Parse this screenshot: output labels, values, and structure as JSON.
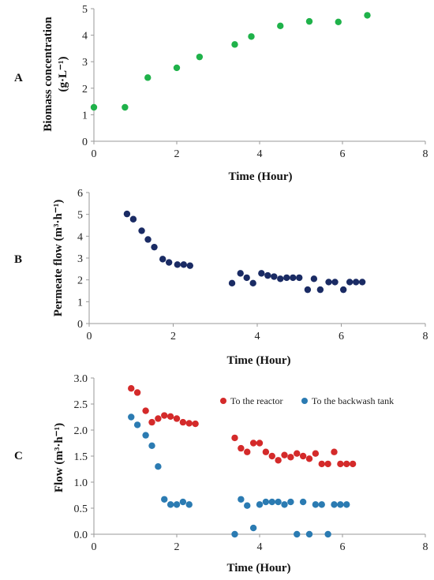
{
  "chart_data": [
    {
      "panel": "A",
      "type": "scatter",
      "xlabel": "Time (Hour)",
      "ylabel": "Biomass concentration",
      "ylabel_unit": "(g·L⁻¹)",
      "xlim": [
        0,
        8
      ],
      "ylim": [
        0,
        5
      ],
      "xticks": [
        "0",
        "2",
        "4",
        "6",
        "8"
      ],
      "yticks": [
        "0",
        "1",
        "2",
        "3",
        "4",
        "5"
      ],
      "grid": false,
      "series": [
        {
          "color": "#1fb24a",
          "points": [
            [
              0.0,
              1.28
            ],
            [
              0.75,
              1.28
            ],
            [
              1.3,
              2.4
            ],
            [
              2.0,
              2.77
            ],
            [
              2.55,
              3.18
            ],
            [
              3.4,
              3.65
            ],
            [
              3.8,
              3.95
            ],
            [
              4.5,
              4.35
            ],
            [
              5.2,
              4.52
            ],
            [
              5.9,
              4.5
            ],
            [
              6.6,
              4.75
            ]
          ]
        }
      ]
    },
    {
      "panel": "B",
      "type": "scatter",
      "xlabel": "Time (Hour)",
      "ylabel": "Permeate flow (m³·h⁻¹)",
      "xlim": [
        0,
        8
      ],
      "ylim": [
        0,
        6
      ],
      "xticks": [
        "0",
        "2",
        "4",
        "6",
        "8"
      ],
      "yticks": [
        "0",
        "1",
        "2",
        "3",
        "4",
        "5",
        "6"
      ],
      "grid": false,
      "series": [
        {
          "color": "#1a2b64",
          "points": [
            [
              0.9,
              5.02
            ],
            [
              1.05,
              4.78
            ],
            [
              1.25,
              4.25
            ],
            [
              1.4,
              3.85
            ],
            [
              1.55,
              3.5
            ],
            [
              1.75,
              2.95
            ],
            [
              1.9,
              2.8
            ],
            [
              2.1,
              2.7
            ],
            [
              2.25,
              2.7
            ],
            [
              2.4,
              2.65
            ],
            [
              3.4,
              1.85
            ],
            [
              3.6,
              2.3
            ],
            [
              3.75,
              2.1
            ],
            [
              3.9,
              1.85
            ],
            [
              4.1,
              2.3
            ],
            [
              4.25,
              2.2
            ],
            [
              4.4,
              2.15
            ],
            [
              4.55,
              2.05
            ],
            [
              4.7,
              2.1
            ],
            [
              4.85,
              2.1
            ],
            [
              5.0,
              2.1
            ],
            [
              5.2,
              1.55
            ],
            [
              5.35,
              2.05
            ],
            [
              5.5,
              1.55
            ],
            [
              5.7,
              1.9
            ],
            [
              5.85,
              1.9
            ],
            [
              6.05,
              1.55
            ],
            [
              6.2,
              1.9
            ],
            [
              6.35,
              1.9
            ],
            [
              6.5,
              1.9
            ]
          ]
        }
      ]
    },
    {
      "panel": "C",
      "type": "scatter",
      "xlabel": "Time (Hour)",
      "ylabel": "Flow (m³·h⁻¹)",
      "xlim": [
        0,
        8
      ],
      "ylim": [
        0,
        3
      ],
      "xticks": [
        "0",
        "2",
        "4",
        "6",
        "8"
      ],
      "yticks": [
        "0.0",
        "0.5",
        "1.0",
        "1.5",
        "2.0",
        "2.5",
        "3.0"
      ],
      "grid": false,
      "legend_position": "top-right",
      "series": [
        {
          "name": "To the reactor",
          "color": "#d42a2a",
          "points": [
            [
              0.9,
              2.8
            ],
            [
              1.05,
              2.72
            ],
            [
              1.25,
              2.37
            ],
            [
              1.4,
              2.15
            ],
            [
              1.55,
              2.22
            ],
            [
              1.7,
              2.28
            ],
            [
              1.85,
              2.26
            ],
            [
              2.0,
              2.22
            ],
            [
              2.15,
              2.15
            ],
            [
              2.3,
              2.13
            ],
            [
              2.45,
              2.12
            ],
            [
              3.4,
              1.85
            ],
            [
              3.55,
              1.65
            ],
            [
              3.7,
              1.58
            ],
            [
              3.85,
              1.75
            ],
            [
              4.0,
              1.75
            ],
            [
              4.15,
              1.58
            ],
            [
              4.3,
              1.5
            ],
            [
              4.45,
              1.42
            ],
            [
              4.6,
              1.52
            ],
            [
              4.75,
              1.48
            ],
            [
              4.9,
              1.55
            ],
            [
              5.05,
              1.5
            ],
            [
              5.2,
              1.45
            ],
            [
              5.35,
              1.55
            ],
            [
              5.5,
              1.35
            ],
            [
              5.65,
              1.35
            ],
            [
              5.8,
              1.58
            ],
            [
              5.95,
              1.35
            ],
            [
              6.1,
              1.35
            ],
            [
              6.25,
              1.35
            ]
          ]
        },
        {
          "name": "To the backwash tank",
          "color": "#2b7bb2",
          "points": [
            [
              0.9,
              2.25
            ],
            [
              1.05,
              2.1
            ],
            [
              1.25,
              1.9
            ],
            [
              1.4,
              1.7
            ],
            [
              1.55,
              1.3
            ],
            [
              1.7,
              0.67
            ],
            [
              1.85,
              0.57
            ],
            [
              2.0,
              0.57
            ],
            [
              2.15,
              0.62
            ],
            [
              2.3,
              0.57
            ],
            [
              3.4,
              0.0
            ],
            [
              3.55,
              0.67
            ],
            [
              3.7,
              0.55
            ],
            [
              3.85,
              0.12
            ],
            [
              4.0,
              0.57
            ],
            [
              4.15,
              0.62
            ],
            [
              4.3,
              0.62
            ],
            [
              4.45,
              0.62
            ],
            [
              4.6,
              0.57
            ],
            [
              4.75,
              0.62
            ],
            [
              4.9,
              0.0
            ],
            [
              5.05,
              0.62
            ],
            [
              5.2,
              0.0
            ],
            [
              5.35,
              0.57
            ],
            [
              5.5,
              0.57
            ],
            [
              5.65,
              0.0
            ],
            [
              5.8,
              0.57
            ],
            [
              5.95,
              0.57
            ],
            [
              6.1,
              0.57
            ]
          ]
        }
      ]
    }
  ]
}
